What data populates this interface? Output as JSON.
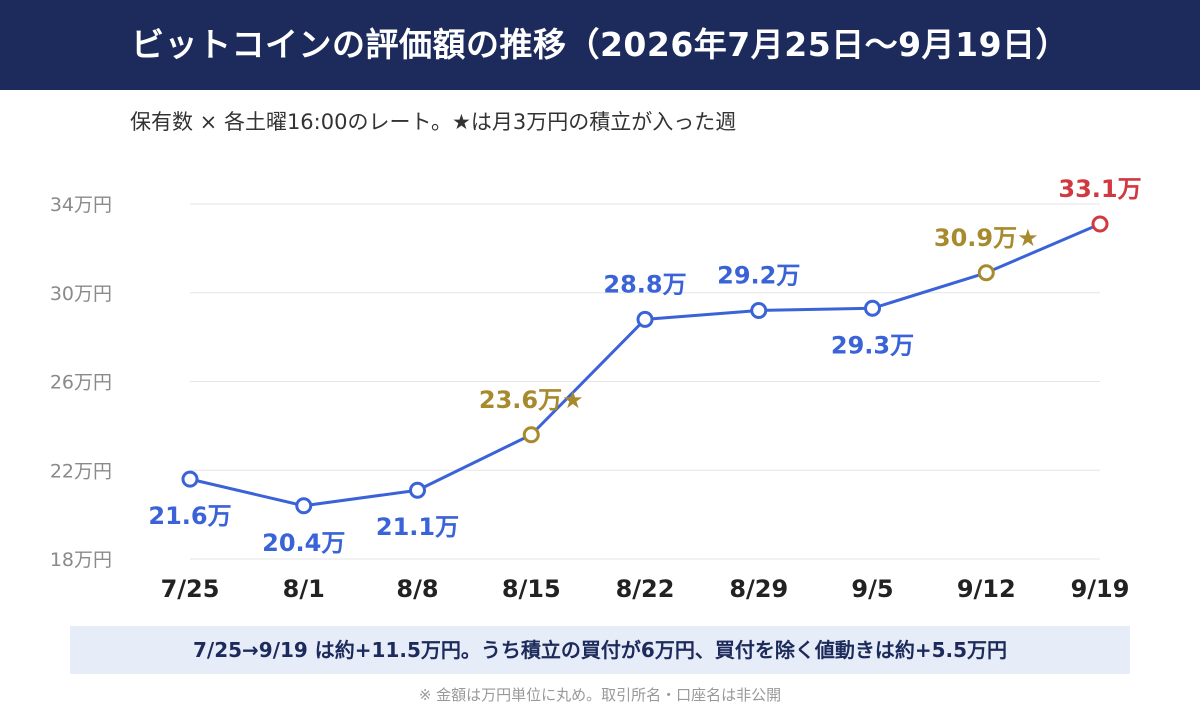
{
  "header": {
    "title": "ビットコインの評価額の推移（2026年7月25日〜9月19日）"
  },
  "subtitle": "保有数 × 各土曜16:00のレート。★は月3万円の積立が入った週",
  "chart_data": {
    "type": "line",
    "categories": [
      "7/25",
      "8/1",
      "8/8",
      "8/15",
      "8/22",
      "8/29",
      "9/5",
      "9/12",
      "9/19"
    ],
    "values": [
      21.6,
      20.4,
      21.1,
      23.6,
      28.8,
      29.2,
      29.3,
      30.9,
      33.1
    ],
    "point_labels": [
      "21.6万",
      "20.4万",
      "21.1万",
      "23.6万★",
      "28.8万",
      "29.2万",
      "29.3万",
      "30.9万★",
      "33.1万"
    ],
    "point_types": [
      "normal",
      "normal",
      "normal",
      "deposit",
      "normal",
      "normal",
      "normal",
      "deposit",
      "latest"
    ],
    "yticks": [
      {
        "value": 18,
        "label": "18万円"
      },
      {
        "value": 22,
        "label": "22万円"
      },
      {
        "value": 26,
        "label": "26万円"
      },
      {
        "value": 30,
        "label": "30万円"
      },
      {
        "value": 34,
        "label": "34万円"
      }
    ],
    "ylim": [
      18,
      34
    ],
    "grid": true,
    "colors": {
      "line": "#3b63d8",
      "normal": "#3b63d8",
      "deposit": "#a88a2e",
      "latest": "#d0393f"
    }
  },
  "summary": "7/25→9/19 は約+11.5万円。うち積立の買付が6万円、買付を除く値動きは約+5.5万円",
  "footnote": "※ 金額は万円単位に丸め。取引所名・口座名は非公開"
}
